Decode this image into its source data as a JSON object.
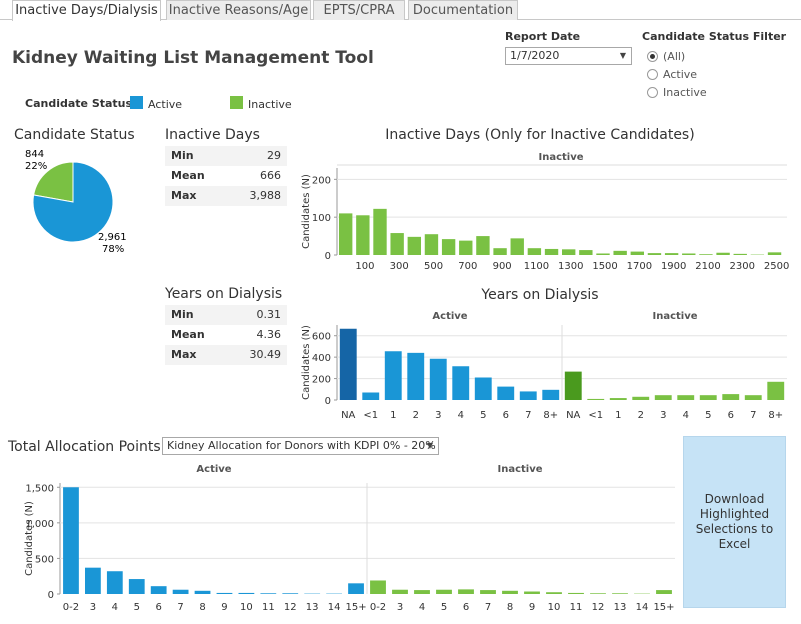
{
  "tabs": [
    "Inactive Days/Dialysis",
    "Inactive Reasons/Age",
    "EPTS/CPRA",
    "Documentation"
  ],
  "app_title": "Kidney Waiting List Management Tool",
  "report_date": {
    "label": "Report Date",
    "value": "1/7/2020"
  },
  "status_filter": {
    "label": "Candidate Status Filter",
    "options": [
      "(All)",
      "Active",
      "Inactive"
    ],
    "selected": "(All)"
  },
  "legend": {
    "label": "Candidate Status:",
    "active": "Active",
    "inactive": "Inactive"
  },
  "colors": {
    "active": "#1a96d6",
    "inactive": "#7ac143",
    "active_dark": "#1565a6",
    "inactive_dark": "#4a9a1e",
    "grid": "#e3e3e3",
    "axis": "#999999"
  },
  "candidate_status": {
    "title": "Candidate Status",
    "inactive_count": "844",
    "inactive_pct": "22%",
    "active_count": "2,961",
    "active_pct": "78%"
  },
  "inactive_days": {
    "title": "Inactive Days",
    "stats": [
      {
        "k": "Min",
        "v": "29"
      },
      {
        "k": "Mean",
        "v": "666"
      },
      {
        "k": "Max",
        "v": "3,988"
      }
    ]
  },
  "years_dialysis": {
    "title": "Years on Dialysis",
    "stats": [
      {
        "k": "Min",
        "v": "0.31"
      },
      {
        "k": "Mean",
        "v": "4.36"
      },
      {
        "k": "Max",
        "v": "30.49"
      }
    ]
  },
  "allocation": {
    "title": "Total Allocation Points",
    "select_value": "Kidney Allocation for Donors with KDPI 0% - 20%"
  },
  "download_label": "Download Highlighted Selections to Excel",
  "chart_data": [
    {
      "id": "candidate_status",
      "type": "pie",
      "title": "Candidate Status",
      "categories": [
        "Active",
        "Inactive"
      ],
      "values": [
        2961,
        844
      ]
    },
    {
      "id": "inactive_days",
      "type": "bar",
      "title": "Inactive Days (Only for Inactive Candidates)",
      "panel": "Inactive",
      "ylabel": "Candidates (N)",
      "ylim": [
        0,
        230
      ],
      "yticks": [
        0,
        100,
        200
      ],
      "xticks": [
        "100",
        "300",
        "500",
        "700",
        "900",
        "1100",
        "1300",
        "1500",
        "1700",
        "1900",
        "2100",
        "2300",
        "2500"
      ],
      "values": [
        110,
        105,
        122,
        58,
        48,
        55,
        42,
        38,
        50,
        18,
        44,
        18,
        16,
        15,
        13,
        4,
        11,
        9,
        5,
        5,
        4,
        2,
        6,
        3,
        1,
        7
      ]
    },
    {
      "id": "years_dialysis",
      "type": "bar",
      "title": "Years on Dialysis",
      "ylabel": "Candidates (N)",
      "ylim": [
        0,
        700
      ],
      "yticks": [
        0,
        200,
        400,
        600
      ],
      "categories": [
        "NA",
        "<1",
        "1",
        "2",
        "3",
        "4",
        "5",
        "6",
        "7",
        "8+"
      ],
      "series": [
        {
          "name": "Active",
          "values": [
            665,
            70,
            455,
            440,
            385,
            315,
            210,
            125,
            80,
            95
          ]
        },
        {
          "name": "Inactive",
          "values": [
            265,
            10,
            18,
            30,
            45,
            45,
            45,
            55,
            45,
            170
          ]
        }
      ]
    },
    {
      "id": "allocation_points",
      "type": "bar",
      "ylabel": "Candidates (N)",
      "ylim": [
        0,
        1560
      ],
      "yticks": [
        0,
        500,
        1000,
        1500
      ],
      "ytick_labels": [
        "0",
        "500",
        "1,000",
        "1,500"
      ],
      "categories": [
        "0-2",
        "3",
        "4",
        "5",
        "6",
        "7",
        "8",
        "9",
        "10",
        "11",
        "12",
        "13",
        "14",
        "15+"
      ],
      "series": [
        {
          "name": "Active",
          "values": [
            1500,
            370,
            320,
            210,
            110,
            60,
            45,
            15,
            15,
            10,
            10,
            5,
            5,
            150
          ]
        },
        {
          "name": "Inactive",
          "values": [
            190,
            60,
            55,
            60,
            65,
            55,
            45,
            35,
            25,
            15,
            10,
            10,
            5,
            55
          ]
        }
      ]
    }
  ]
}
